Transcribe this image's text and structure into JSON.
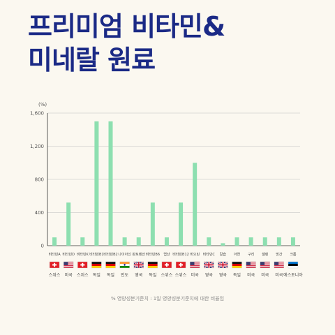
{
  "title_lines": [
    "프리미엄 비타민&",
    "미네랄 원료"
  ],
  "footnote": "% 영양성분기준치 : 1일 영양성분기준치에 대한 비율임",
  "colors": {
    "bar": "#8ddfb0",
    "title": "#1b2a86",
    "axis": "#333333",
    "grid": "#bdbdbd"
  },
  "chart_data": {
    "type": "bar",
    "ylabel": "(%)",
    "ylim": [
      0,
      1600
    ],
    "yticks": [
      "1,600",
      "1,200",
      "800",
      "400",
      "0"
    ],
    "ytick_values": [
      1600,
      1200,
      800,
      400,
      0
    ],
    "categories": [
      "비타민A",
      "비타민D",
      "비타민K",
      "비타민B1",
      "비타민B2",
      "나이아신",
      "판토텐산",
      "비타민B6",
      "엽산",
      "비타민B12",
      "비오틴",
      "비타민C",
      "칼슘",
      "아연",
      "구리",
      "셀렌",
      "망간",
      "크롬"
    ],
    "values": [
      100,
      520,
      100,
      1500,
      1500,
      100,
      100,
      520,
      100,
      520,
      1000,
      100,
      30,
      100,
      100,
      100,
      100,
      100
    ],
    "countries": [
      "스위스",
      "미국",
      "스위스",
      "독일",
      "독일",
      "인도",
      "영국",
      "독일",
      "스위스",
      "스위스",
      "미국",
      "영국",
      "영국",
      "독일",
      "미국",
      "미국",
      "미국",
      "에스토니아"
    ],
    "flags": [
      "swiss-flag",
      "us-flag",
      "swiss-flag",
      "german-flag",
      "german-flag",
      "indian-flag",
      "uk-flag",
      "german-flag",
      "swiss-flag",
      "swiss-flag",
      "us-flag",
      "uk-flag",
      "uk-flag",
      "german-flag",
      "us-flag",
      "us-flag",
      "us-flag",
      "estonian-flag"
    ]
  }
}
